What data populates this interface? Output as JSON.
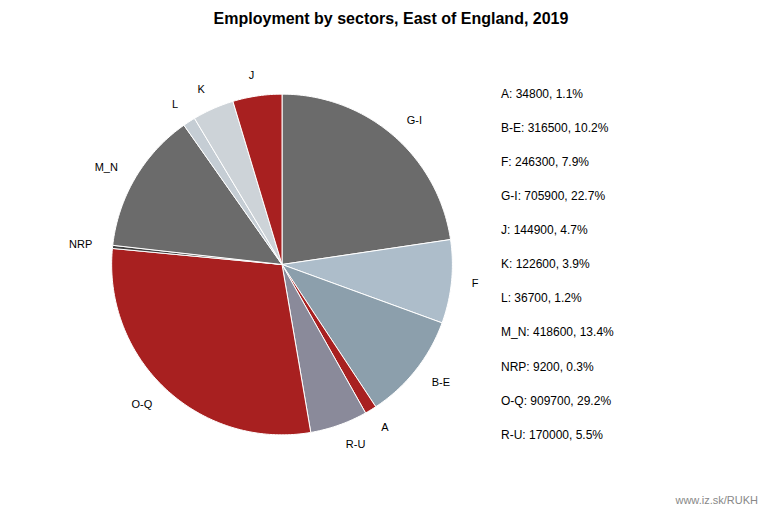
{
  "chart_data": {
    "type": "pie",
    "title": "Employment by sectors, East of England, 2019",
    "categories": [
      "G-I",
      "F",
      "B-E",
      "A",
      "R-U",
      "O-Q",
      "NRP",
      "M_N",
      "L",
      "K",
      "J"
    ],
    "values": [
      705900,
      246300,
      316500,
      34800,
      170000,
      909700,
      9200,
      418600,
      36700,
      122600,
      144900
    ],
    "colors": [
      "#6b6b6b",
      "#adbdca",
      "#8c9fac",
      "#a82020",
      "#8a8a9a",
      "#a82020",
      "#404040",
      "#6b6b6b",
      "#c5cdd4",
      "#cdd3d8",
      "#a82020"
    ],
    "annotations": [
      "A: 34800, 1.1%",
      "B-E: 316500, 10.2%",
      "F: 246300, 7.9%",
      "G-I: 705900, 22.7%",
      "J: 144900, 4.7%",
      "K: 122600, 3.9%",
      "L: 36700, 1.2%",
      "M_N: 418600, 13.4%",
      "NRP: 9200, 0.3%",
      "O-Q: 909700, 29.2%",
      "R-U: 170000, 5.5%"
    ],
    "caption": "www.iz.sk/RUKH"
  }
}
